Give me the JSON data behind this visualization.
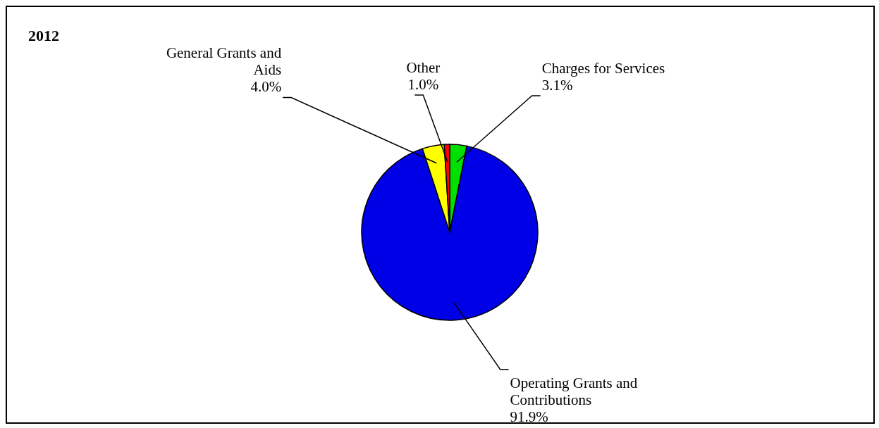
{
  "chart_data": {
    "type": "pie",
    "title": "2012",
    "categories": [
      "Charges for Services",
      "Operating Grants and Contributions",
      "General Grants and Aids",
      "Other"
    ],
    "values": [
      3.1,
      91.9,
      4.0,
      1.0
    ],
    "colors": [
      "#00e000",
      "#0000e6",
      "#ffff00",
      "#ff0000"
    ],
    "value_labels": [
      "3.1%",
      "91.9%",
      "4.0%",
      "1.0%"
    ],
    "legend": false
  }
}
